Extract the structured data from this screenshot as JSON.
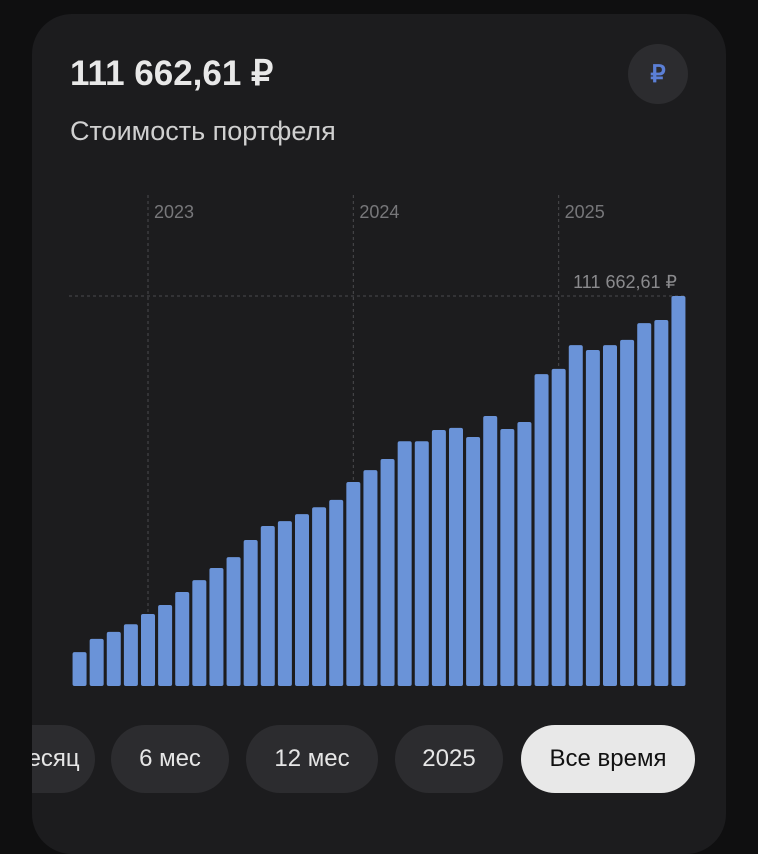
{
  "header": {
    "value": "111 662,61 ₽",
    "subtitle": "Стоимость портфеля",
    "currency_icon": "₽"
  },
  "chart_data": {
    "type": "bar",
    "categories": [
      null,
      null,
      null,
      null,
      "2023",
      null,
      null,
      null,
      null,
      null,
      null,
      null,
      null,
      null,
      null,
      null,
      "2024",
      null,
      null,
      null,
      null,
      null,
      null,
      null,
      null,
      null,
      null,
      null,
      "2025",
      null,
      null,
      null,
      null,
      null,
      null,
      null
    ],
    "values": [
      9700,
      13500,
      15500,
      17700,
      20600,
      23200,
      26900,
      30300,
      33800,
      36900,
      41800,
      45800,
      47200,
      49200,
      51200,
      53300,
      58400,
      61800,
      65000,
      70100,
      70100,
      73300,
      73900,
      71300,
      77300,
      73600,
      75600,
      89300,
      90800,
      97600,
      96200,
      97600,
      99100,
      103900,
      104800,
      111662.61
    ],
    "color": "#6a93d8",
    "ylim": [
      0,
      140600
    ],
    "reference_line": {
      "value": 111662.61,
      "label": "111 662,61 ₽"
    }
  },
  "buttons": [
    {
      "label": "Месяц",
      "active": false
    },
    {
      "label": "6 мес",
      "active": false
    },
    {
      "label": "12 мес",
      "active": false
    },
    {
      "label": "2025",
      "active": false
    },
    {
      "label": "Все время",
      "active": true
    }
  ]
}
